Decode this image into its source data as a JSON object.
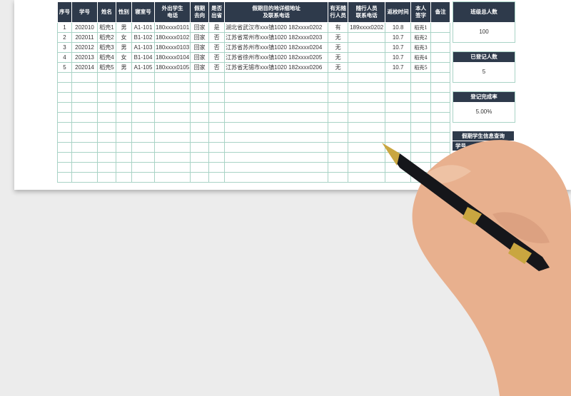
{
  "table": {
    "headers": [
      "序号",
      "学号",
      "姓名",
      "性别",
      "寝室号",
      "外出学生\n电话",
      "假期\n去向",
      "是否\n出省",
      "假期目的地详细地址\n及联系电话",
      "有无随\n行人员",
      "随行人员\n联系电话",
      "返校时间",
      "本人\n签字",
      "备注"
    ],
    "rows": [
      [
        "1",
        "202010",
        "稻壳1",
        "男",
        "A1-101",
        "180xxxx0101",
        "回家",
        "是",
        "湖北省武汉市xxx镇1020 182xxxx0202",
        "有",
        "189xxxx0202",
        "10.8",
        "稻壳1",
        ""
      ],
      [
        "2",
        "202011",
        "稻壳2",
        "女",
        "B1-102",
        "180xxxx0102",
        "回家",
        "否",
        "江苏省常州市xxx镇1020 182xxxx0203",
        "无",
        "",
        "10.7",
        "稻壳2",
        ""
      ],
      [
        "3",
        "202012",
        "稻壳3",
        "男",
        "A1-103",
        "180xxxx0103",
        "回家",
        "否",
        "江苏省苏州市xxx镇1020 182xxxx0204",
        "无",
        "",
        "10.7",
        "稻壳3",
        ""
      ],
      [
        "4",
        "202013",
        "稻壳4",
        "女",
        "B1-104",
        "180xxxx0104",
        "回家",
        "否",
        "江苏省徐州市xxx镇1020 182xxxx0205",
        "无",
        "",
        "10.7",
        "稻壳4",
        ""
      ],
      [
        "5",
        "202014",
        "稻壳5",
        "男",
        "A1-105",
        "180xxxx0105",
        "回家",
        "否",
        "江苏省无锡市xxx镇1020 182xxxx0206",
        "无",
        "",
        "10.7",
        "稻壳5",
        ""
      ]
    ]
  },
  "stats": [
    {
      "label": "班级总人数",
      "value": "100"
    },
    {
      "label": "已登记人数",
      "value": "5"
    },
    {
      "label": "登记完成率",
      "value": "5.00%"
    }
  ],
  "query": {
    "label": "假期学生信息查询",
    "field": "学号"
  },
  "colors": {
    "header": "#2e3a4b",
    "grid": "#a9d3c6"
  }
}
